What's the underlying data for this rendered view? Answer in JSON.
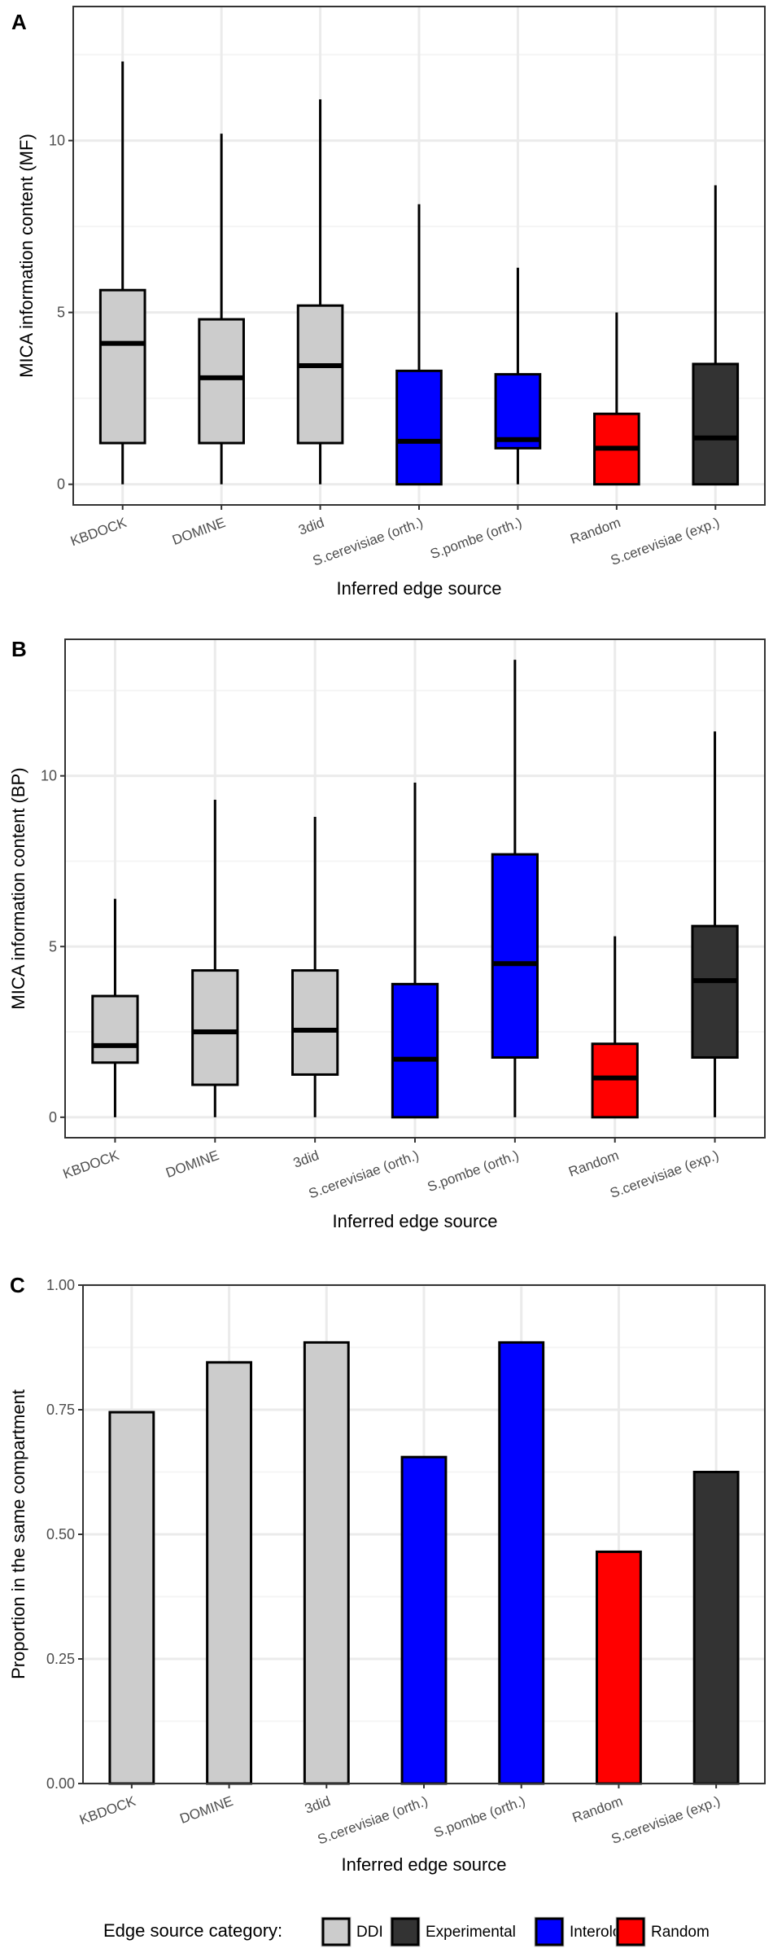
{
  "colors": {
    "DDI": "#cccccc",
    "Experimental": "#333333",
    "Interolog": "#0000ff",
    "Random": "#ff0000",
    "grid_major": "#ebebeb",
    "grid_minor": "#f5f5f5",
    "outline": "#000000",
    "tick_text": "#4d4d4d"
  },
  "chart_data": [
    {
      "panel": "A",
      "type": "box",
      "xlabel": "Inferred edge source",
      "ylabel": "MICA information content (MF)",
      "ylim": [
        -0.6,
        13.9
      ],
      "yticks": [
        0,
        5,
        10
      ],
      "ytick_labels": [
        "0",
        "5",
        "10"
      ],
      "categories": [
        "KBDOCK",
        "DOMINE",
        "3did",
        "S.cerevisiae (orth.)",
        "S.pombe (orth.)",
        "Random",
        "S.cerevisiae (exp.)"
      ],
      "category_group": [
        "DDI",
        "DDI",
        "DDI",
        "Interolog",
        "Interolog",
        "Random",
        "Experimental"
      ],
      "boxes": [
        {
          "min": 0,
          "q1": 1.2,
          "median": 4.1,
          "q3": 5.65,
          "max": 12.3
        },
        {
          "min": 0,
          "q1": 1.2,
          "median": 3.1,
          "q3": 4.8,
          "max": 10.2
        },
        {
          "min": 0,
          "q1": 1.2,
          "median": 3.45,
          "q3": 5.2,
          "max": 11.2
        },
        {
          "min": 0,
          "q1": 0,
          "median": 1.25,
          "q3": 3.3,
          "max": 8.15
        },
        {
          "min": 0,
          "q1": 1.05,
          "median": 1.3,
          "q3": 3.2,
          "max": 6.3
        },
        {
          "min": 0,
          "q1": 0,
          "median": 1.05,
          "q3": 2.05,
          "max": 5.0
        },
        {
          "min": 0,
          "q1": 0,
          "median": 1.35,
          "q3": 3.5,
          "max": 8.7
        }
      ]
    },
    {
      "panel": "B",
      "type": "box",
      "xlabel": "Inferred edge source",
      "ylabel": "MICA information content (BP)",
      "ylim": [
        -0.6,
        14.0
      ],
      "yticks": [
        0,
        5,
        10
      ],
      "ytick_labels": [
        "0",
        "5",
        "10"
      ],
      "categories": [
        "KBDOCK",
        "DOMINE",
        "3did",
        "S.cerevisiae (orth.)",
        "S.pombe (orth.)",
        "Random",
        "S.cerevisiae (exp.)"
      ],
      "category_group": [
        "DDI",
        "DDI",
        "DDI",
        "Interolog",
        "Interolog",
        "Random",
        "Experimental"
      ],
      "boxes": [
        {
          "min": 0,
          "q1": 1.6,
          "median": 2.1,
          "q3": 3.55,
          "max": 6.4
        },
        {
          "min": 0,
          "q1": 0.95,
          "median": 2.5,
          "q3": 4.3,
          "max": 9.3
        },
        {
          "min": 0,
          "q1": 1.25,
          "median": 2.55,
          "q3": 4.3,
          "max": 8.8
        },
        {
          "min": 0,
          "q1": 0,
          "median": 1.7,
          "q3": 3.9,
          "max": 9.8
        },
        {
          "min": 0,
          "q1": 1.75,
          "median": 4.5,
          "q3": 7.7,
          "max": 13.4
        },
        {
          "min": 0,
          "q1": 0,
          "median": 1.15,
          "q3": 2.15,
          "max": 5.3
        },
        {
          "min": 0,
          "q1": 1.75,
          "median": 4.0,
          "q3": 5.6,
          "max": 11.3
        }
      ]
    },
    {
      "panel": "C",
      "type": "bar",
      "xlabel": "Inferred edge source",
      "ylabel": "Proportion in the same compartment",
      "ylim": [
        0,
        1.0
      ],
      "yticks": [
        0,
        0.25,
        0.5,
        0.75,
        1.0
      ],
      "ytick_labels": [
        "0.00",
        "0.25",
        "0.50",
        "0.75",
        "1.00"
      ],
      "categories": [
        "KBDOCK",
        "DOMINE",
        "3did",
        "S.cerevisiae (orth.)",
        "S.pombe (orth.)",
        "Random",
        "S.cerevisiae (exp.)"
      ],
      "category_group": [
        "DDI",
        "DDI",
        "DDI",
        "Interolog",
        "Interolog",
        "Random",
        "Experimental"
      ],
      "values": [
        0.745,
        0.845,
        0.885,
        0.655,
        0.885,
        0.465,
        0.625
      ]
    }
  ],
  "legend": {
    "title": "Edge source category:",
    "items": [
      {
        "label": "DDI",
        "group": "DDI"
      },
      {
        "label": "Experimental",
        "group": "Experimental"
      },
      {
        "label": "Interolog",
        "group": "Interolog"
      },
      {
        "label": "Random",
        "group": "Random"
      }
    ]
  }
}
